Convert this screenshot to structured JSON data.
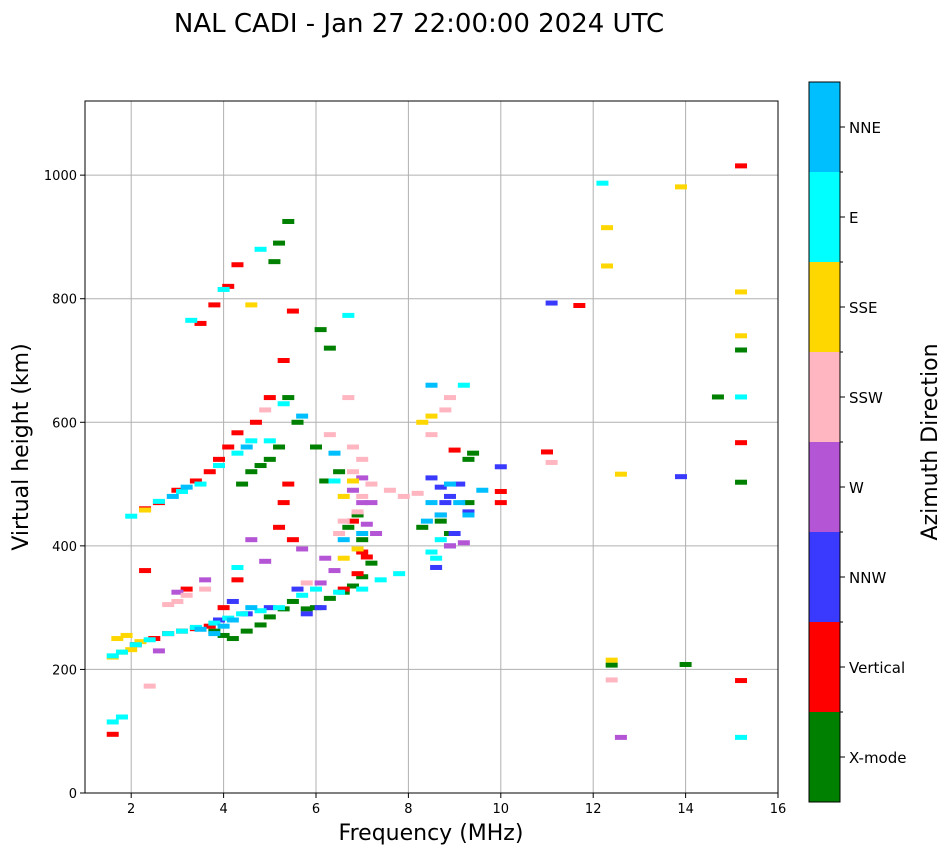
{
  "chart_data": {
    "type": "scatter",
    "title": "NAL CADI - Jan 27 22:00:00 2024 UTC",
    "xlabel": "Frequency (MHz)",
    "ylabel": "Virtual height (km)",
    "xlim": [
      1,
      16
    ],
    "ylim": [
      0,
      1120
    ],
    "xticks": [
      2,
      4,
      6,
      8,
      10,
      12,
      14,
      16
    ],
    "yticks": [
      0,
      200,
      400,
      600,
      800,
      1000
    ],
    "grid": true,
    "colorbar": {
      "label": "Azimuth Direction",
      "categories": [
        {
          "name": "X-mode",
          "color": "#008000"
        },
        {
          "name": "Vertical",
          "color": "#ff0000"
        },
        {
          "name": "NNW",
          "color": "#3a3aff"
        },
        {
          "name": "W",
          "color": "#b455d6"
        },
        {
          "name": "SSW",
          "color": "#ffb6c1"
        },
        {
          "name": "SSE",
          "color": "#ffd700"
        },
        {
          "name": "E",
          "color": "#00ffff"
        },
        {
          "name": "NNE",
          "color": "#00bfff"
        }
      ]
    },
    "series": [
      {
        "name": "X-mode",
        "points": [
          [
            4.2,
            250
          ],
          [
            4.5,
            262
          ],
          [
            4.8,
            272
          ],
          [
            5.0,
            285
          ],
          [
            5.3,
            298
          ],
          [
            5.5,
            310
          ],
          [
            5.8,
            298
          ],
          [
            6.0,
            300
          ],
          [
            6.3,
            315
          ],
          [
            6.6,
            325
          ],
          [
            6.8,
            335
          ],
          [
            7.0,
            350
          ],
          [
            7.2,
            372
          ],
          [
            7.0,
            410
          ],
          [
            6.9,
            450
          ],
          [
            6.5,
            520
          ],
          [
            6.0,
            560
          ],
          [
            5.6,
            600
          ],
          [
            5.4,
            640
          ],
          [
            5.2,
            560
          ],
          [
            5.0,
            540
          ],
          [
            4.8,
            530
          ],
          [
            4.6,
            520
          ],
          [
            4.4,
            500
          ],
          [
            5.1,
            860
          ],
          [
            5.2,
            890
          ],
          [
            6.1,
            750
          ],
          [
            6.3,
            720
          ],
          [
            8.3,
            430
          ],
          [
            8.7,
            440
          ],
          [
            8.9,
            420
          ],
          [
            9.3,
            470
          ],
          [
            9.3,
            540
          ],
          [
            9.4,
            550
          ],
          [
            15.2,
            717
          ],
          [
            15.2,
            503
          ],
          [
            12.4,
            207
          ],
          [
            14.0,
            208
          ],
          [
            14.7,
            641
          ],
          [
            5.4,
            925
          ],
          [
            6.2,
            505
          ],
          [
            6.7,
            430
          ],
          [
            3.8,
            262
          ],
          [
            4.0,
            255
          ]
        ]
      },
      {
        "name": "Vertical",
        "points": [
          [
            1.6,
            95
          ],
          [
            2.1,
            240
          ],
          [
            2.5,
            250
          ],
          [
            2.8,
            258
          ],
          [
            3.1,
            262
          ],
          [
            3.4,
            266
          ],
          [
            3.7,
            270
          ],
          [
            2.3,
            460
          ],
          [
            2.6,
            470
          ],
          [
            3.0,
            490
          ],
          [
            3.4,
            505
          ],
          [
            3.7,
            520
          ],
          [
            3.9,
            540
          ],
          [
            4.1,
            560
          ],
          [
            4.3,
            583
          ],
          [
            3.5,
            760
          ],
          [
            3.8,
            790
          ],
          [
            4.1,
            820
          ],
          [
            4.3,
            855
          ],
          [
            4.7,
            600
          ],
          [
            5.0,
            640
          ],
          [
            5.3,
            700
          ],
          [
            5.5,
            780
          ],
          [
            5.2,
            430
          ],
          [
            5.3,
            470
          ],
          [
            6.6,
            330
          ],
          [
            6.9,
            355
          ],
          [
            7.1,
            382
          ],
          [
            7.0,
            390
          ],
          [
            6.8,
            440
          ],
          [
            9.0,
            555
          ],
          [
            10.0,
            470
          ],
          [
            10.0,
            488
          ],
          [
            11.0,
            552
          ],
          [
            11.7,
            789
          ],
          [
            15.2,
            1015
          ],
          [
            15.2,
            567
          ],
          [
            15.2,
            182
          ],
          [
            4.0,
            300
          ],
          [
            4.3,
            345
          ],
          [
            3.2,
            330
          ],
          [
            2.3,
            360
          ],
          [
            5.4,
            500
          ],
          [
            5.5,
            410
          ]
        ]
      },
      {
        "name": "NNW",
        "points": [
          [
            8.6,
            365
          ],
          [
            8.9,
            400
          ],
          [
            9.0,
            420
          ],
          [
            8.7,
            450
          ],
          [
            8.9,
            480
          ],
          [
            9.1,
            500
          ],
          [
            9.3,
            455
          ],
          [
            8.7,
            495
          ],
          [
            8.5,
            510
          ],
          [
            8.8,
            470
          ],
          [
            10.0,
            528
          ],
          [
            11.1,
            793
          ],
          [
            13.9,
            512
          ],
          [
            4.5,
            290
          ],
          [
            5.0,
            300
          ],
          [
            4.2,
            310
          ],
          [
            3.9,
            280
          ],
          [
            5.6,
            330
          ],
          [
            5.8,
            290
          ],
          [
            6.1,
            300
          ]
        ]
      },
      {
        "name": "W",
        "points": [
          [
            7.3,
            420
          ],
          [
            7.1,
            435
          ],
          [
            7.2,
            470
          ],
          [
            6.8,
            490
          ],
          [
            7.0,
            510
          ],
          [
            12.6,
            90
          ],
          [
            6.1,
            340
          ],
          [
            6.4,
            360
          ],
          [
            2.6,
            230
          ],
          [
            3.0,
            325
          ],
          [
            3.6,
            345
          ],
          [
            4.6,
            410
          ],
          [
            4.9,
            375
          ],
          [
            8.9,
            400
          ],
          [
            9.2,
            405
          ],
          [
            5.7,
            395
          ],
          [
            6.2,
            380
          ],
          [
            7.0,
            470
          ]
        ]
      },
      {
        "name": "SSW",
        "points": [
          [
            6.6,
            440
          ],
          [
            6.9,
            455
          ],
          [
            7.0,
            480
          ],
          [
            7.2,
            500
          ],
          [
            7.6,
            490
          ],
          [
            7.9,
            480
          ],
          [
            8.2,
            485
          ],
          [
            6.5,
            420
          ],
          [
            6.8,
            520
          ],
          [
            6.8,
            560
          ],
          [
            7.0,
            540
          ],
          [
            8.5,
            580
          ],
          [
            8.8,
            620
          ],
          [
            8.9,
            640
          ],
          [
            11.1,
            535
          ],
          [
            12.4,
            183
          ],
          [
            3.0,
            310
          ],
          [
            3.2,
            320
          ],
          [
            3.6,
            330
          ],
          [
            2.8,
            305
          ],
          [
            2.4,
            173
          ],
          [
            6.7,
            640
          ],
          [
            6.3,
            580
          ],
          [
            5.8,
            340
          ],
          [
            4.9,
            620
          ]
        ]
      },
      {
        "name": "SSE",
        "points": [
          [
            1.6,
            220
          ],
          [
            1.8,
            228
          ],
          [
            2.0,
            232
          ],
          [
            1.7,
            250
          ],
          [
            1.9,
            255
          ],
          [
            2.2,
            245
          ],
          [
            2.3,
            458
          ],
          [
            8.3,
            600
          ],
          [
            8.5,
            610
          ],
          [
            12.3,
            915
          ],
          [
            12.3,
            853
          ],
          [
            12.6,
            516
          ],
          [
            13.9,
            981
          ],
          [
            15.2,
            811
          ],
          [
            15.2,
            740
          ],
          [
            12.4,
            215
          ],
          [
            6.6,
            380
          ],
          [
            6.9,
            395
          ],
          [
            6.6,
            480
          ],
          [
            4.6,
            790
          ],
          [
            6.8,
            505
          ]
        ]
      },
      {
        "name": "E",
        "points": [
          [
            1.6,
            115
          ],
          [
            1.8,
            123
          ],
          [
            1.6,
            222
          ],
          [
            1.8,
            228
          ],
          [
            2.1,
            240
          ],
          [
            2.4,
            248
          ],
          [
            2.8,
            258
          ],
          [
            3.1,
            262
          ],
          [
            3.4,
            268
          ],
          [
            3.8,
            275
          ],
          [
            4.1,
            283
          ],
          [
            4.4,
            290
          ],
          [
            4.8,
            295
          ],
          [
            5.2,
            300
          ],
          [
            2.0,
            448
          ],
          [
            2.6,
            472
          ],
          [
            3.1,
            488
          ],
          [
            3.5,
            500
          ],
          [
            3.9,
            530
          ],
          [
            4.3,
            550
          ],
          [
            4.6,
            570
          ],
          [
            3.3,
            765
          ],
          [
            4.0,
            815
          ],
          [
            4.8,
            880
          ],
          [
            5.7,
            320
          ],
          [
            6.0,
            330
          ],
          [
            6.5,
            325
          ],
          [
            7.0,
            330
          ],
          [
            7.4,
            345
          ],
          [
            7.8,
            355
          ],
          [
            8.5,
            390
          ],
          [
            8.7,
            410
          ],
          [
            8.6,
            380
          ],
          [
            9.2,
            660
          ],
          [
            15.2,
            90
          ],
          [
            15.2,
            641
          ],
          [
            12.2,
            987
          ],
          [
            6.4,
            505
          ],
          [
            6.7,
            773
          ],
          [
            4.3,
            365
          ],
          [
            5.3,
            630
          ],
          [
            5.0,
            570
          ]
        ]
      },
      {
        "name": "NNE",
        "points": [
          [
            8.7,
            450
          ],
          [
            9.1,
            470
          ],
          [
            9.3,
            450
          ],
          [
            8.9,
            500
          ],
          [
            8.4,
            440
          ],
          [
            8.5,
            470
          ],
          [
            6.4,
            550
          ],
          [
            6.6,
            410
          ],
          [
            7.0,
            420
          ],
          [
            5.7,
            610
          ],
          [
            8.5,
            660
          ],
          [
            9.6,
            490
          ],
          [
            3.5,
            265
          ],
          [
            3.8,
            258
          ],
          [
            4.0,
            270
          ],
          [
            4.2,
            280
          ],
          [
            4.6,
            300
          ],
          [
            2.9,
            480
          ],
          [
            3.2,
            495
          ],
          [
            4.5,
            560
          ]
        ]
      }
    ]
  }
}
